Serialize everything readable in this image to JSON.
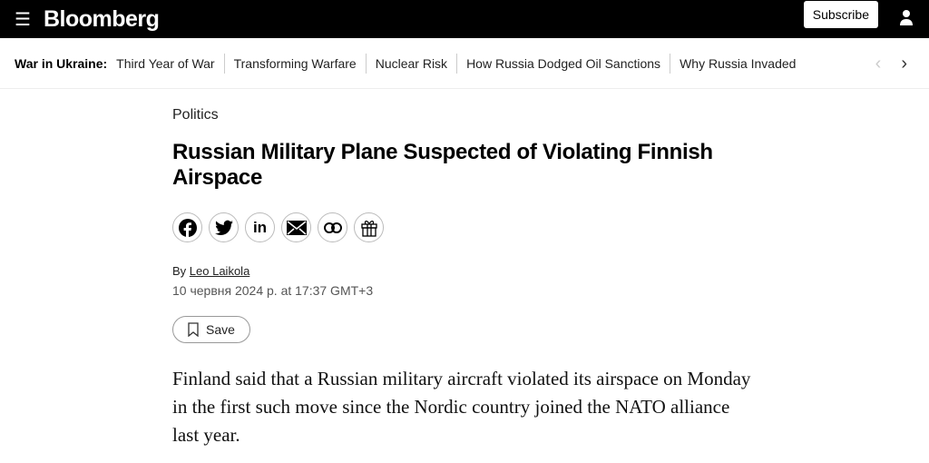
{
  "header": {
    "brand": "Bloomberg",
    "subscribe": "Subscribe",
    "menu_icon": "hamburger-icon",
    "user_icon": "user-icon"
  },
  "topic_nav": {
    "label": "War in Ukraine:",
    "items": [
      "Third Year of War",
      "Transforming Warfare",
      "Nuclear Risk",
      "How Russia Dodged Oil Sanctions",
      "Why Russia Invaded"
    ]
  },
  "article": {
    "category": "Politics",
    "title": "Russian Military Plane Suspected of Violating Finnish Airspace",
    "share_icons": [
      "facebook-icon",
      "twitter-icon",
      "linkedin-icon",
      "email-icon",
      "link-icon",
      "gift-icon"
    ],
    "by": "By",
    "author": "Leo Laikola",
    "date": "10 червня 2024 р. at 17:37 GMT+3",
    "save": "Save",
    "body": "Finland said that a Russian military aircraft violated its airspace on Monday in the first such move since the Nordic country joined the NATO alliance last year."
  }
}
